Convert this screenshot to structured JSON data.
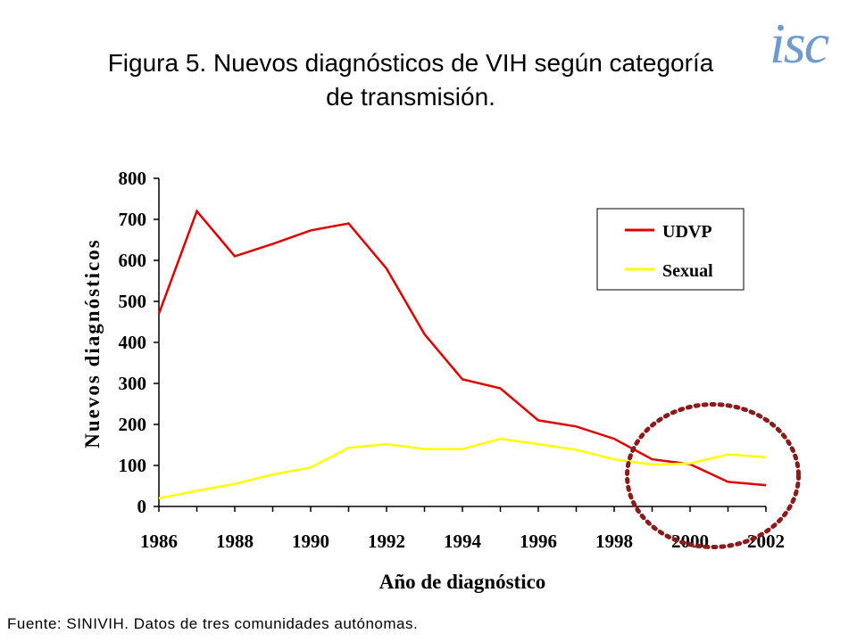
{
  "header": {
    "title_line1": "Figura 5. Nuevos diagnósticos de VIH según categoría",
    "title_line2": "de transmisión.",
    "logo_text": "isc"
  },
  "footer": {
    "source": "Fuente: SINIVIH. Datos de tres comunidades autónomas."
  },
  "chart_data": {
    "type": "line",
    "xlabel": "Año de diagnóstico",
    "ylabel": "Nuevos diagnósticos",
    "xlim": [
      1986,
      2002
    ],
    "ylim": [
      0,
      800
    ],
    "x_ticks": [
      1986,
      1988,
      1990,
      1992,
      1994,
      1996,
      1998,
      2000,
      2002
    ],
    "y_ticks": [
      0,
      100,
      200,
      300,
      400,
      500,
      600,
      700,
      800
    ],
    "x": [
      1986,
      1987,
      1988,
      1989,
      1990,
      1991,
      1992,
      1993,
      1994,
      1995,
      1996,
      1997,
      1998,
      1999,
      2000,
      2001,
      2002
    ],
    "series": [
      {
        "name": "UDVP",
        "color": "#e00000",
        "values": [
          470,
          720,
          610,
          640,
          673,
          690,
          580,
          420,
          310,
          288,
          210,
          195,
          165,
          115,
          103,
          60,
          52
        ]
      },
      {
        "name": "Sexual",
        "color": "#ffff00",
        "values": [
          20,
          38,
          55,
          78,
          95,
          143,
          152,
          140,
          140,
          165,
          152,
          138,
          115,
          102,
          105,
          127,
          120
        ]
      }
    ],
    "legend": "top-right",
    "grid": false,
    "annotation": {
      "shape": "dotted-circle",
      "color": "#8b1a1a",
      "center_x": 2000.6,
      "center_y": 75
    }
  }
}
